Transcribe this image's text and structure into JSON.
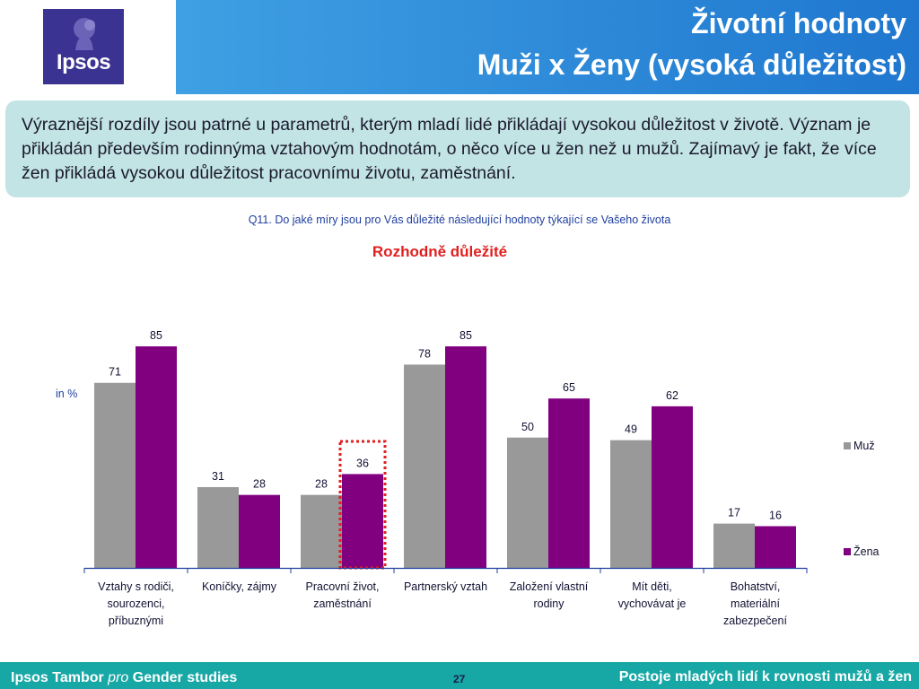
{
  "header": {
    "logo_text": "Ipsos",
    "title_line1": "Životní hodnoty",
    "title_line2": "Muži x Ženy (vysoká důležitost)"
  },
  "summary": {
    "text": "Výraznější rozdíly jsou patrné u parametrů, kterým mladí lidé přikládají vysokou důležitost v životě. Význam je přikládán především rodinnýma vztahovým hodnotám, o něco více u žen než u mužů. Zajímavý je fakt, že více žen přikládá vysokou důležitost pracovnímu životu, zaměstnání."
  },
  "question": "Q11. Do jaké míry jsou pro Vás důležité následující hodnoty týkající se Vašeho života",
  "subtitle": "Rozhodně důležité",
  "unit_label": "in %",
  "chart_data": {
    "type": "bar",
    "title": "Rozhodně důležité",
    "ylabel": "in %",
    "ylim": [
      0,
      100
    ],
    "grid": false,
    "legend_position": "right",
    "categories": [
      [
        "Vztahy s rodiči,",
        "sourozenci,",
        "příbuznými"
      ],
      [
        "Koníčky, zájmy"
      ],
      [
        "Pracovní život,",
        "zaměstnání"
      ],
      [
        "Partnerský vztah"
      ],
      [
        "Založení vlastní",
        "rodiny"
      ],
      [
        "Mít děti,",
        "vychovávat je"
      ],
      [
        "Bohatství,",
        "materiální",
        "zabezpečení"
      ]
    ],
    "series": [
      {
        "name": "Muž",
        "color": "#999999",
        "values": [
          71,
          31,
          28,
          78,
          50,
          49,
          17
        ]
      },
      {
        "name": "Žena",
        "color": "#800080",
        "values": [
          85,
          28,
          36,
          85,
          65,
          62,
          16
        ]
      }
    ],
    "highlight": {
      "series_index": 1,
      "category_index": 2,
      "style": "red dotted box"
    }
  },
  "footer": {
    "left_bold1": "Ipsos Tambor ",
    "left_italic": "pro",
    "left_bold2": " Gender studies",
    "page_number": "27",
    "right_text": "Postoje mladých lidí k rovnosti mužů a žen"
  }
}
